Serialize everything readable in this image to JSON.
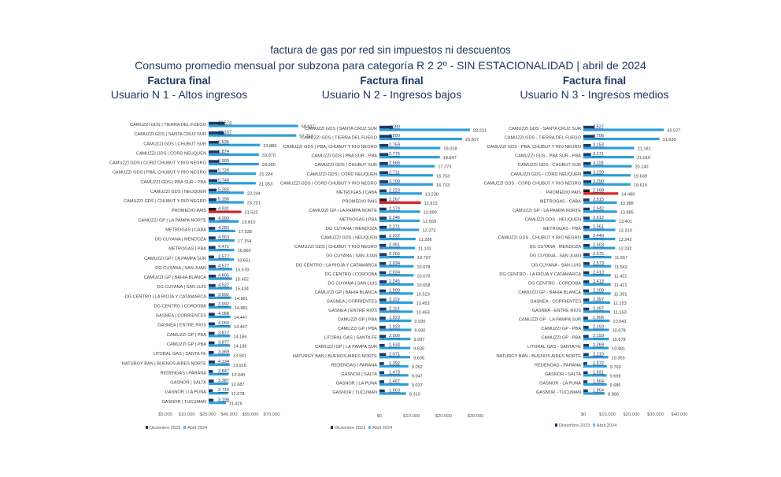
{
  "title": "factura de gas por red sin impuestos ni descuentos",
  "subtitle": "Consumo promedio mensual por subzona para categoría R 2 2º - SIN ESTACIONALIDAD | abril de 2024",
  "colors": {
    "dic": "#1f3864",
    "abr": "#2e9fd8",
    "abr_light": "#4fc3f7",
    "promedio_dic": "#1a1a1a",
    "promedio_abr": "#d62728"
  },
  "chart_data": [
    {
      "type": "bar",
      "orientation": "horizontal",
      "header": "Factura final",
      "title": "Usuario N 1 - Altos ingresos",
      "xlim": [
        0,
        70000
      ],
      "xticks": [
        {
          "v": 5000,
          "label": "$5.000"
        },
        {
          "v": 10000,
          "label": "$10.000"
        },
        {
          "v": 25000,
          "label": "$25.000"
        },
        {
          "v": 40000,
          "label": "$40.000"
        },
        {
          "v": 55000,
          "label": "$55.000"
        },
        {
          "v": 70000,
          "label": "$70.000"
        }
      ],
      "legend": [
        "Diciembre 2023",
        "Abril 2024"
      ],
      "legend_position": "bottom",
      "categories": [
        "CAMUZZI GDS | TIERRA DEL FUEGO",
        "CAMUZZI GDS | SANTA CRUZ SUR",
        "CAMUZZI GDS | CHUBUT SUR",
        "CAMUZZI GDS | CORD NEUQUEN",
        "CAMUZZI GDS | CORD CHUBUT Y RIO NEGRO",
        "CAMUZZI GDS | PBA, CHUBUT Y RIO NEGRO",
        "CAMUZZI GDS | PBA SUR - PBA",
        "CAMUZZI GDS | NEUQUEN",
        "CAMUZZI GDS | CHUBUT Y RIO NEGRO",
        "PROMEDIO PAIS",
        "CAMUZZI GP | LA PAMPA NORTE",
        "METROGAS | CABA",
        "DG CUYANA | MENDOZA",
        "METROGAS | PBA",
        "CAMUZZI GP | LA PAMPA SUR",
        "DG CUYANA | SAN JUAN",
        "CAMUZZI GP | BAHIA BLANCA",
        "DG CUYANA | SAN LUIS",
        "DG CENTRO | LA RIOJA Y CATAMARCA",
        "DG CENTRO | CORDOBA",
        "GASNEA | CORRIENTES",
        "GASNEA | ENTRE RIOS",
        "CAMUZZI GP | PBA",
        "CAMUZZI GP | PBA",
        "LITORAL GAS | SANTA FE",
        "NATURGY BAN | BUENOS AIRES NORTE",
        "REDENGAS | PARANA",
        "GASNOR | SALTA",
        "GASNOR | LA PUNA",
        "GASNOR | TUCUMAN"
      ],
      "series": [
        {
          "name": "Diciembre 2023",
          "values": [
            10574,
            10167,
            6536,
            6874,
            6905,
            5726,
            5748,
            5265,
            5156,
            4931,
            4090,
            4283,
            4563,
            4471,
            3577,
            4577,
            4805,
            4522,
            3992,
            3992,
            4068,
            4060,
            3877,
            3877,
            3369,
            4134,
            2847,
            3387,
            2710,
            3198
          ],
          "labels": [
            "10.574",
            "10.167",
            "6.536",
            "6.874",
            "6.905",
            "5.726",
            "5.748",
            "5.265",
            "5.156",
            "4.931",
            "4.090",
            "4.283",
            "4.563",
            "4.471",
            "3.577",
            "4.577",
            "4.805",
            "4.522",
            "3.992",
            "3.992",
            "4.068",
            "4.060",
            "3.877",
            "3.877",
            "3.369",
            "4.134",
            "2.847",
            "3.387",
            "2.710",
            "3.198"
          ]
        },
        {
          "name": "Abril 2024",
          "values": [
            58917,
            57713,
            33880,
            33070,
            33050,
            31224,
            31053,
            23244,
            23201,
            21522,
            19810,
            17538,
            17154,
            16860,
            16651,
            15578,
            15452,
            15434,
            14881,
            14881,
            14447,
            14447,
            14186,
            14186,
            13941,
            13916,
            13040,
            12687,
            12678,
            11425
          ],
          "labels": [
            "58.917",
            "57.713",
            "33.880",
            "33.070",
            "33.050",
            "31.224",
            "31.053",
            "23.244",
            "23.201",
            "21.522",
            "19.810",
            "17.538",
            "17.154",
            "16.860",
            "16.651",
            "15.578",
            "15.452",
            "15.434",
            "14.881",
            "14.881",
            "14.447",
            "14.447",
            "14.186",
            "14.186",
            "13.941",
            "13.916",
            "13.040",
            "12.687",
            "12.678",
            "11.425"
          ]
        }
      ]
    },
    {
      "type": "bar",
      "orientation": "horizontal",
      "header": "Factura final",
      "title": "Usuario N 2 - Ingresos bajos",
      "xlim": [
        0,
        30000
      ],
      "xticks": [
        {
          "v": 0,
          "label": "$0"
        },
        {
          "v": 10000,
          "label": "$10.000"
        },
        {
          "v": 20000,
          "label": "$20.000"
        },
        {
          "v": 30000,
          "label": "$30.000"
        }
      ],
      "legend": [
        "Diciembre 2023",
        "Abril 2024"
      ],
      "legend_position": "bottom",
      "categories": [
        "CAMUZZI GDS | SANTA CRUZ SUR",
        "CAMUZZI GDS | TIERRA DEL FUEGO",
        "CAMUZZI GDS | PBA, CHUBUT Y RIO NEGRO",
        "CAMUZZI GDS | PBA SUR - PBA",
        "CAMUZZI GDS | CHUBUT SUR",
        "CAMUZZI GDS | CORD NEUQUEN",
        "CAMUZZI GDS | CORD CHUBUT Y RIO NEGRO",
        "METROGAS | CABA",
        "PROMEDIO PAIS",
        "CAMUZZI GP | LA PAMPA NORTE",
        "METROGAS | PBA",
        "DG CUYANA | MENDOZA",
        "CAMUZZI GDS | NEUQUEN",
        "CAMUZZI GDS | CHUBUT Y RIO NEGRO",
        "DG CUYANA | SAN JUAN",
        "DG CENTRO | LA RIOJA Y CATAMARCA",
        "DG CENTRO | CORDOBA",
        "DG CUYANA | SAN LUIS",
        "CAMUZZI GP | BAHIA BLANCA",
        "GASNEA | CORRIENTES",
        "GASNEA | ENTRE RIOS",
        "CAMUZZI GP | PBA",
        "CAMUZZI GP | PBA",
        "LITORAL GAS | SANTA FE",
        "CAMUZZI GP | LA PAMPA SUR",
        "NATURGY BAN | BUENOS AIRES NORTE",
        "REDENGAS | PARANA",
        "GASNOR | SALTA",
        "GASNOR | LA PUNA",
        "GASNOR | TUCUMAN"
      ],
      "series": [
        {
          "name": "Diciembre 2023",
          "values": [
            4180,
            3890,
            2759,
            2775,
            2666,
            2711,
            2709,
            2223,
            2267,
            2174,
            2246,
            2271,
            2022,
            2051,
            2265,
            2034,
            2034,
            2245,
            1999,
            2119,
            2114,
            1923,
            1923,
            2000,
            1634,
            2071,
            1392,
            1473,
            1467,
            1663
          ],
          "labels": [
            "4.180",
            "3.890",
            "2.759",
            "2.775",
            "2.666",
            "2.711",
            "2.709",
            "2.223",
            "2.267",
            "2.174",
            "2.246",
            "2.271",
            "2.022",
            "2.051",
            "2.265",
            "2.034",
            "2.034",
            "2.245",
            "1.999",
            "2.119",
            "2.114",
            "1.923",
            "1.923",
            "2.000",
            "1.634",
            "2.071",
            "1.392",
            "1.473",
            "1.467",
            "1.663"
          ]
        },
        {
          "name": "Abril 2024",
          "values": [
            28231,
            25817,
            19018,
            18847,
            17273,
            16753,
            16733,
            13238,
            12913,
            12699,
            12559,
            12373,
            11286,
            11102,
            10797,
            10678,
            10678,
            10658,
            10523,
            10453,
            10453,
            9930,
            9930,
            9697,
            9635,
            9606,
            9052,
            9047,
            9037,
            8310
          ],
          "labels": [
            "28.231",
            "25.817",
            "19.018",
            "18.847",
            "17.273",
            "16.753",
            "16.733",
            "13.238",
            "12.913",
            "12.699",
            "12.559",
            "12.373",
            "11.286",
            "11.102",
            "10.797",
            "10.678",
            "10.678",
            "10.658",
            "10.523",
            "10.453",
            "10.453",
            "9.930",
            "9.930",
            "9.697",
            "9.635",
            "9.606",
            "9.052",
            "9.047",
            "9.037",
            "8.310"
          ]
        }
      ]
    },
    {
      "type": "bar",
      "orientation": "horizontal",
      "header": "Factura final",
      "title": "Usuario N 3 - Ingresos medios",
      "xlim": [
        0,
        40000
      ],
      "xticks": [
        {
          "v": 0,
          "label": "$0"
        },
        {
          "v": 10000,
          "label": "$10.000"
        },
        {
          "v": 20000,
          "label": "$20.000"
        },
        {
          "v": 30000,
          "label": "$30.000"
        },
        {
          "v": 40000,
          "label": "$40.000"
        }
      ],
      "legend": [
        "Diciembre 2023",
        "Abril 2024"
      ],
      "legend_position": "bottom",
      "categories": [
        "CAMUZZI GDS - SANTA CRUZ SUR",
        "CAMUZZI GDS - TIERRA DEL FUEGO",
        "CAMUZZI GDS - PBA, CHUBUT Y RIO NEGRO",
        "CAMUZZI GDS - PBA SUR - PBA",
        "CAMUZZI GDS - CHUBUT SUR",
        "CAMUZZI GDS - CORD NEUQUEN",
        "CAMUZZI GDS - CORD CHUBUT Y RIO NEGRO",
        "PROMEDIO PAIS",
        "METROGAS - CABA",
        "CAMUZZI GP - LA PAMPA NORTE",
        "CAMUZZI GDS - NEUQUEN",
        "METROGAS - PBA",
        "CAMUZZI GDS - CHUBUT Y RIO NEGRO",
        "DG CUYANA - MENDOZA",
        "DG CUYANA - SAN JUAN",
        "DG CUYANA - SAN LUIS",
        "DG CENTRO - LA RIOJA Y CATAMARCA",
        "DG CENTRO - CORDOBA",
        "CAMUZZI GP - BAHIA BLANCA",
        "GASNEA - CORRIENTES",
        "GASNEA - ENTRE RIOS",
        "CAMUZZI GP - LA PAMPA SUR",
        "CAMUZZI GP - PBA",
        "CAMUZZI GP - PBA",
        "LITORAL GAS - SANTA FE",
        "NATURGY BAN - BUENOS AIRES NORTE",
        "REDENGAS - PARANA",
        "GASNOR - SALTA",
        "GASNOR - LA PUNA",
        "GASNOR - TUCUMAN"
      ],
      "series": [
        {
          "name": "Diciembre 2023",
          "values": [
            4537,
            4706,
            3153,
            3171,
            3118,
            3239,
            3290,
            2598,
            2515,
            2642,
            2612,
            2561,
            2440,
            2603,
            2575,
            2573,
            2413,
            2413,
            2308,
            2397,
            2397,
            1906,
            2193,
            2193,
            2269,
            2219,
            1572,
            1831,
            1664,
            1854
          ],
          "labels": [
            "4.537",
            "4.706",
            "3.153",
            "3.171",
            "3.118",
            "3.239",
            "3.290",
            "2.598",
            "2.515",
            "2.642",
            "2.612",
            "2.561",
            "2.440",
            "2.603",
            "2.575",
            "2.573",
            "2.413",
            "2.413",
            "2.308",
            "2.397",
            "2.397",
            "1.906",
            "2.193",
            "2.193",
            "2.269",
            "2.219",
            "1.572",
            "1.831",
            "1.664",
            "1.854"
          ]
        },
        {
          "name": "Abril 2024",
          "values": [
            33527,
            31630,
            21181,
            21010,
            20140,
            19639,
            19619,
            14489,
            13988,
            13985,
            13401,
            13310,
            13242,
            13232,
            11657,
            11542,
            11421,
            11421,
            11391,
            11153,
            11153,
            10943,
            10678,
            10678,
            10481,
            10365,
            9769,
            9696,
            9686,
            8866
          ],
          "labels": [
            "33.527",
            "31.630",
            "21.181",
            "21.010",
            "20.140",
            "19.639",
            "19.619",
            "14.489",
            "13.988",
            "13.985",
            "13.401",
            "13.310",
            "13.242",
            "13.232",
            "11.657",
            "11.542",
            "11.421",
            "11.421",
            "11.391",
            "11.153",
            "11.153",
            "10.943",
            "10.678",
            "10.678",
            "10.481",
            "10.365",
            "9.769",
            "9.696",
            "9.686",
            "8.866"
          ]
        }
      ]
    }
  ]
}
